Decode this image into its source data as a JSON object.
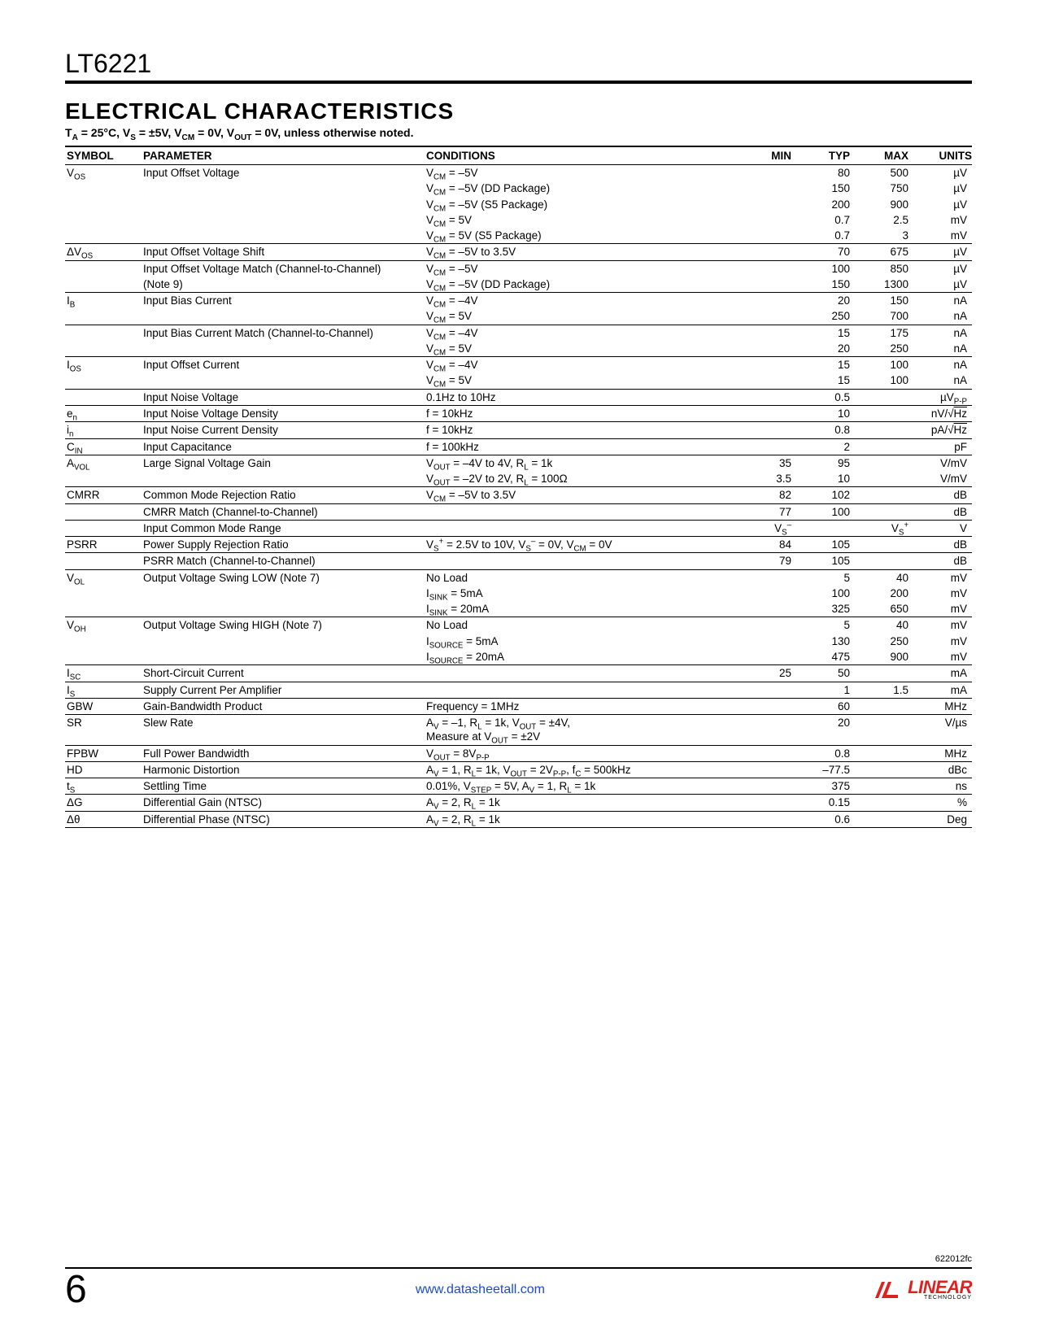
{
  "part_number": "LT6221",
  "section_title": "ELECTRICAL CHARACTERISTICS",
  "conditions_line_html": "T<sub>A</sub> = 25°C, V<sub>S</sub> = ±5V, V<sub>CM</sub> = 0V, V<sub>OUT</sub> = 0V, unless otherwise noted.",
  "headers": [
    "SYMBOL",
    "PARAMETER",
    "CONDITIONS",
    "MIN",
    "TYP",
    "MAX",
    "UNITS"
  ],
  "rows": [
    {
      "g": 1,
      "sym": "V<sub>OS</sub>",
      "param": "Input Offset Voltage",
      "cond": "V<sub>CM</sub> = –5V",
      "min": "",
      "typ": "80",
      "max": "500",
      "units": "µV"
    },
    {
      "sym": "",
      "param": "",
      "cond": "V<sub>CM</sub> = –5V (DD Package)",
      "min": "",
      "typ": "150",
      "max": "750",
      "units": "µV"
    },
    {
      "sym": "",
      "param": "",
      "cond": "V<sub>CM</sub> = –5V (S5 Package)",
      "min": "",
      "typ": "200",
      "max": "900",
      "units": "µV"
    },
    {
      "sym": "",
      "param": "",
      "cond": "V<sub>CM</sub> = 5V",
      "min": "",
      "typ": "0.7",
      "max": "2.5",
      "units": "mV"
    },
    {
      "sym": "",
      "param": "",
      "cond": "V<sub>CM</sub> = 5V (S5 Package)",
      "min": "",
      "typ": "0.7",
      "max": "3",
      "units": "mV"
    },
    {
      "g": 1,
      "sym": "ΔV<sub>OS</sub>",
      "param": "Input Offset Voltage Shift",
      "cond": "V<sub>CM</sub> =  –5V to 3.5V",
      "min": "",
      "typ": "70",
      "max": "675",
      "units": "µV"
    },
    {
      "g": 1,
      "sym": "",
      "param": "Input Offset Voltage Match (Channel-to-Channel)",
      "cond": "V<sub>CM</sub> = –5V",
      "min": "",
      "typ": "100",
      "max": "850",
      "units": "µV"
    },
    {
      "sym": "",
      "param": "(Note 9)",
      "cond": "V<sub>CM</sub> = –5V (DD Package)",
      "min": "",
      "typ": "150",
      "max": "1300",
      "units": "µV"
    },
    {
      "g": 1,
      "sym": "I<sub>B</sub>",
      "param": "Input Bias Current",
      "cond": "V<sub>CM</sub> = –4V",
      "min": "",
      "typ": "20",
      "max": "150",
      "units": "nA"
    },
    {
      "sym": "",
      "param": "",
      "cond": "V<sub>CM</sub> = 5V",
      "min": "",
      "typ": "250",
      "max": "700",
      "units": "nA"
    },
    {
      "g": 1,
      "sym": "",
      "param": "Input Bias Current Match (Channel-to-Channel)",
      "cond": "V<sub>CM</sub> = –4V",
      "min": "",
      "typ": "15",
      "max": "175",
      "units": "nA"
    },
    {
      "sym": "",
      "param": "",
      "cond": "V<sub>CM</sub> = 5V",
      "min": "",
      "typ": "20",
      "max": "250",
      "units": "nA"
    },
    {
      "g": 1,
      "sym": "I<sub>OS</sub>",
      "param": "Input Offset Current",
      "cond": "V<sub>CM</sub> = –4V",
      "min": "",
      "typ": "15",
      "max": "100",
      "units": "nA"
    },
    {
      "sym": "",
      "param": "",
      "cond": "V<sub>CM</sub> = 5V",
      "min": "",
      "typ": "15",
      "max": "100",
      "units": "nA"
    },
    {
      "g": 1,
      "sym": "",
      "param": "Input Noise Voltage",
      "cond": "0.1Hz to 10Hz",
      "min": "",
      "typ": "0.5",
      "max": "",
      "units": "µV<sub>P-P</sub>"
    },
    {
      "g": 1,
      "sym": "e<sub>n</sub>",
      "param": "Input Noise Voltage Density",
      "cond": "f = 10kHz",
      "min": "",
      "typ": "10",
      "max": "",
      "units": "nV/√<span style='text-decoration:overline'>Hz</span>"
    },
    {
      "g": 1,
      "sym": "i<sub>n</sub>",
      "param": "Input Noise Current Density",
      "cond": "f = 10kHz",
      "min": "",
      "typ": "0.8",
      "max": "",
      "units": "pA/√<span style='text-decoration:overline'>Hz</span>"
    },
    {
      "g": 1,
      "sym": "C<sub>IN</sub>",
      "param": "Input Capacitance",
      "cond": "f = 100kHz",
      "min": "",
      "typ": "2",
      "max": "",
      "units": "pF"
    },
    {
      "g": 1,
      "sym": "A<sub>VOL</sub>",
      "param": "Large Signal Voltage Gain",
      "cond": "V<sub>OUT</sub> = –4V to 4V, R<sub>L</sub> = 1k",
      "min": "35",
      "typ": "95",
      "max": "",
      "units": "V/mV"
    },
    {
      "sym": "",
      "param": "",
      "cond": "V<sub>OUT</sub> = –2V to 2V, R<sub>L</sub> = 100Ω",
      "min": "3.5",
      "typ": "10",
      "max": "",
      "units": "V/mV"
    },
    {
      "g": 1,
      "sym": "CMRR",
      "param": "Common Mode Rejection Ratio",
      "cond": "V<sub>CM</sub> = –5V to 3.5V",
      "min": "82",
      "typ": "102",
      "max": "",
      "units": "dB"
    },
    {
      "g": 1,
      "sym": "",
      "param": "CMRR Match (Channel-to-Channel)",
      "cond": "",
      "min": "77",
      "typ": "100",
      "max": "",
      "units": "dB"
    },
    {
      "g": 1,
      "sym": "",
      "param": "Input Common Mode Range",
      "cond": "",
      "min": "V<sub>S</sub><sup>–</sup>",
      "typ": "",
      "max": "V<sub>S</sub><sup>+</sup>",
      "units": "V"
    },
    {
      "g": 1,
      "sym": "PSRR",
      "param": "Power Supply Rejection Ratio",
      "cond": "V<sub>S</sub><sup>+</sup> = 2.5V to 10V, V<sub>S</sub><sup>–</sup> = 0V, V<sub>CM</sub> = 0V",
      "min": "84",
      "typ": "105",
      "max": "",
      "units": "dB"
    },
    {
      "g": 1,
      "sym": "",
      "param": "PSRR Match (Channel-to-Channel)",
      "cond": "",
      "min": "79",
      "typ": "105",
      "max": "",
      "units": "dB"
    },
    {
      "g": 1,
      "sym": "V<sub>OL</sub>",
      "param": "Output Voltage Swing LOW (Note 7)",
      "cond": "No Load",
      "min": "",
      "typ": "5",
      "max": "40",
      "units": "mV"
    },
    {
      "sym": "",
      "param": "",
      "cond": "I<sub>SINK</sub> = 5mA",
      "min": "",
      "typ": "100",
      "max": "200",
      "units": "mV"
    },
    {
      "sym": "",
      "param": "",
      "cond": "I<sub>SINK</sub> = 20mA",
      "min": "",
      "typ": "325",
      "max": "650",
      "units": "mV"
    },
    {
      "g": 1,
      "sym": "V<sub>OH</sub>",
      "param": "Output Voltage Swing HIGH (Note 7)",
      "cond": "No Load",
      "min": "",
      "typ": "5",
      "max": "40",
      "units": "mV"
    },
    {
      "sym": "",
      "param": "",
      "cond": "I<sub>SOURCE</sub> = 5mA",
      "min": "",
      "typ": "130",
      "max": "250",
      "units": "mV"
    },
    {
      "sym": "",
      "param": "",
      "cond": "I<sub>SOURCE</sub> = 20mA",
      "min": "",
      "typ": "475",
      "max": "900",
      "units": "mV"
    },
    {
      "g": 1,
      "sym": "I<sub>SC</sub>",
      "param": "Short-Circuit Current",
      "cond": "",
      "min": "25",
      "typ": "50",
      "max": "",
      "units": "mA"
    },
    {
      "g": 1,
      "sym": "I<sub>S</sub>",
      "param": "Supply Current Per Amplifier",
      "cond": "",
      "min": "",
      "typ": "1",
      "max": "1.5",
      "units": "mA"
    },
    {
      "g": 1,
      "sym": "GBW",
      "param": "Gain-Bandwidth Product",
      "cond": "Frequency = 1MHz",
      "min": "",
      "typ": "60",
      "max": "",
      "units": "MHz"
    },
    {
      "g": 1,
      "sym": "SR",
      "param": "Slew Rate",
      "cond": "A<sub>V</sub> = –1, R<sub>L</sub> = 1k, V<sub>OUT</sub> = ±4V,<br>Measure at V<sub>OUT</sub> = ±2V",
      "min": "",
      "typ": "20",
      "max": "",
      "units": "V/µs"
    },
    {
      "g": 1,
      "sym": "FPBW",
      "param": "Full Power Bandwidth",
      "cond": "V<sub>OUT</sub> = 8V<sub>P-P</sub>",
      "min": "",
      "typ": "0.8",
      "max": "",
      "units": "MHz"
    },
    {
      "g": 1,
      "sym": "HD",
      "param": "Harmonic Distortion",
      "cond": "A<sub>V</sub> = 1, R<sub>L</sub>= 1k, V<sub>OUT</sub> = 2V<sub>P-P</sub>, f<sub>C</sub> = 500kHz",
      "min": "",
      "typ": "–77.5",
      "max": "",
      "units": "dBc"
    },
    {
      "g": 1,
      "sym": "t<sub>S</sub>",
      "param": "Settling Time",
      "cond": "0.01%, V<sub>STEP</sub> = 5V, A<sub>V</sub> = 1, R<sub>L</sub> = 1k",
      "min": "",
      "typ": "375",
      "max": "",
      "units": "ns"
    },
    {
      "g": 1,
      "sym": "ΔG",
      "param": "Differential Gain (NTSC)",
      "cond": "A<sub>V</sub> = 2, R<sub>L</sub> = 1k",
      "min": "",
      "typ": "0.15",
      "max": "",
      "units": "%"
    },
    {
      "g": 1,
      "last": 1,
      "sym": "Δθ",
      "param": "Differential Phase (NTSC)",
      "cond": "A<sub>V</sub> = 2, R<sub>L</sub> = 1k",
      "min": "",
      "typ": "0.6",
      "max": "",
      "units": "Deg"
    }
  ],
  "doc_ref": "622012fc",
  "page_number": "6",
  "url": "www.datasheetall.com",
  "logo_text": "LINEAR",
  "logo_sub": "TECHNOLOGY"
}
